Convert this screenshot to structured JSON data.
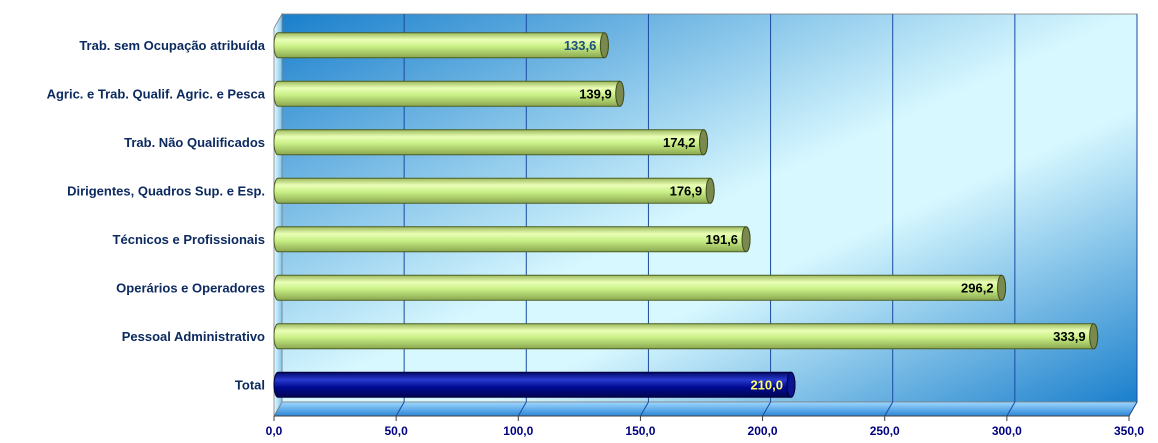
{
  "chart_data": {
    "type": "bar",
    "orientation": "horizontal",
    "title": "",
    "xlabel": "",
    "ylabel": "",
    "categories": [
      "Trab. sem Ocupação atribuída",
      "Agric. e Trab. Qualif. Agric. e Pesca",
      "Trab. Não Qualificados",
      "Dirigentes, Quadros Sup. e Esp.",
      "Técnicos e Profissionais",
      "Operários e Operadores",
      "Pessoal Administrativo",
      "Total"
    ],
    "values": [
      133.6,
      139.9,
      174.2,
      176.9,
      191.6,
      296.2,
      333.9,
      210.0
    ],
    "data_labels": [
      "133,6",
      "139,9",
      "174,2",
      "176,9",
      "191,6",
      "296,2",
      "333,9",
      "210,0"
    ],
    "xlim": [
      0,
      350
    ],
    "xticks": [
      0,
      50,
      100,
      150,
      200,
      250,
      300,
      350
    ],
    "xtick_labels": [
      "0,0",
      "50,0",
      "100,0",
      "150,0",
      "200,0",
      "250,0",
      "300,0",
      "350,0"
    ],
    "grid": true,
    "legend": "none",
    "colors": {
      "bar": "#ccf28a",
      "bar_cap": "#7a8a4e",
      "total_bar": "#000a88",
      "total_label": "#ffff66",
      "first_label": "#1c4e80",
      "label": "#000000",
      "category_label": "#0c2a60",
      "tick_label": "#000080",
      "gridline": "#1a4aa0",
      "plot_bg_dark": "#1a7fcc",
      "plot_bg_light": "#d8f8ff"
    }
  }
}
